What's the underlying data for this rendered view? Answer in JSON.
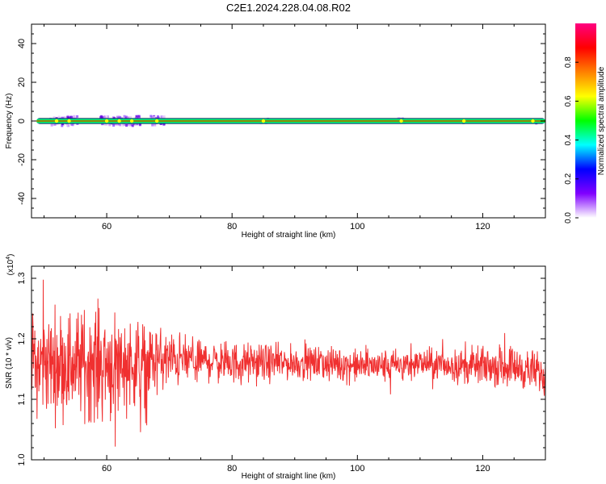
{
  "page": {
    "title": "C2E1.2024.228.04.08.R02"
  },
  "colors": {
    "line": "#f03030",
    "frame": "#000000",
    "background": "#ffffff"
  },
  "chart_data": [
    {
      "type": "heatmap",
      "xlabel": "Height of straight line (km)",
      "ylabel": "Frequency (Hz)",
      "xlim": [
        48,
        130
      ],
      "ylim": [
        -50,
        50
      ],
      "x_ticks": [
        60,
        80,
        100,
        120
      ],
      "y_ticks": [
        -40,
        -20,
        0,
        20,
        40
      ],
      "band_center_hz": 0,
      "band_halfwidth_hz": 1.5,
      "colorbar": {
        "label": "Normalized spectral amplitude",
        "range": [
          0,
          1
        ],
        "ticks": [
          "0.0",
          "0.2",
          "0.4",
          "0.6",
          "0.8"
        ],
        "colors": [
          "#ffffff",
          "#8000ff",
          "#0000ff",
          "#00ffff",
          "#00ff00",
          "#ffff00",
          "#ff8000",
          "#ff0000",
          "#ff0080"
        ]
      },
      "noise_clusters_km": [
        52,
        54,
        60,
        62,
        64,
        68,
        85,
        107,
        117,
        128
      ]
    },
    {
      "type": "line",
      "xlabel": "Height of straight line (km)",
      "ylabel": "SNR (10 * v/v)",
      "y_multiplier": "(x10",
      "y_multiplier_exponent": "4",
      "y_multiplier_close": ")",
      "xlim": [
        48,
        130
      ],
      "ylim": [
        1.0,
        1.32
      ],
      "x_ticks": [
        60,
        80,
        100,
        120
      ],
      "y_ticks": [
        "1.0",
        "1.1",
        "1.2",
        "1.3"
      ],
      "series_envelope": {
        "x": [
          48,
          55,
          60,
          65,
          70,
          75,
          80,
          85,
          90,
          95,
          100,
          105,
          110,
          115,
          120,
          125,
          130
        ],
        "mean": [
          1.16,
          1.16,
          1.16,
          1.16,
          1.165,
          1.165,
          1.16,
          1.16,
          1.16,
          1.16,
          1.155,
          1.155,
          1.16,
          1.155,
          1.155,
          1.155,
          1.14
        ],
        "amplitude": [
          0.12,
          0.13,
          0.14,
          0.1,
          0.07,
          0.05,
          0.05,
          0.045,
          0.04,
          0.04,
          0.04,
          0.04,
          0.035,
          0.04,
          0.045,
          0.05,
          0.05
        ]
      }
    }
  ]
}
